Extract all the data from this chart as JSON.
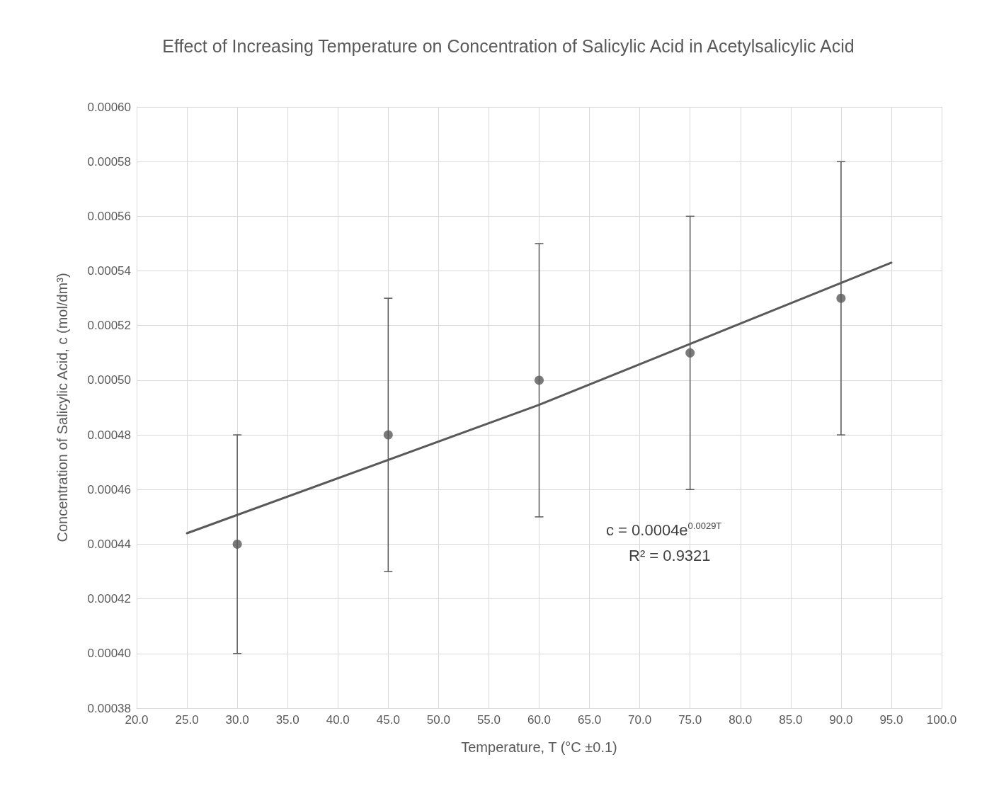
{
  "chart_data": {
    "type": "scatter",
    "title": "Effect of Increasing Temperature on Concentration of Salicylic Acid in Acetylsalicylic Acid",
    "xlabel": "Temperature, T (°C ±0.1)",
    "ylabel": "Concentration of Salicylic Acid, c (mol/dm³)",
    "x": [
      30,
      45,
      60,
      75,
      90
    ],
    "series": [
      {
        "color": "#595959",
        "marker": "circle",
        "values": [
          0.00044,
          0.00048,
          0.0005,
          0.00051,
          0.00053
        ],
        "errors": [
          4e-05,
          5e-05,
          5e-05,
          5e-05,
          5e-05
        ]
      },
      {
        "type": "line",
        "color": "#595959",
        "x": [
          25,
          60,
          95
        ],
        "values": [
          0.000444,
          0.000491,
          0.000543
        ]
      }
    ],
    "annotations": [
      "c = 0.0004e$^{0.0029T}$",
      "R² = 0.9321"
    ],
    "xlim": [
      20,
      100
    ],
    "xticks": [
      {
        "value": 20,
        "label": "20.0"
      },
      {
        "value": 25,
        "label": "25.0"
      },
      {
        "value": 30,
        "label": "30.0"
      },
      {
        "value": 35,
        "label": "35.0"
      },
      {
        "value": 40,
        "label": "40.0"
      },
      {
        "value": 45,
        "label": "45.0"
      },
      {
        "value": 50,
        "label": "50.0"
      },
      {
        "value": 55,
        "label": "55.0"
      },
      {
        "value": 60,
        "label": "60.0"
      },
      {
        "value": 65,
        "label": "65.0"
      },
      {
        "value": 70,
        "label": "70.0"
      },
      {
        "value": 75,
        "label": "75.0"
      },
      {
        "value": 80,
        "label": "80.0"
      },
      {
        "value": 85,
        "label": "85.0"
      },
      {
        "value": 90,
        "label": "90.0"
      },
      {
        "value": 95,
        "label": "95.0"
      },
      {
        "value": 100,
        "label": "100.0"
      }
    ],
    "ylim": [
      0.00038,
      0.0006
    ],
    "yticks": [
      {
        "value": 0.00038,
        "label": "0.00038"
      },
      {
        "value": 0.0004,
        "label": "0.00040"
      },
      {
        "value": 0.00042,
        "label": "0.00042"
      },
      {
        "value": 0.00044,
        "label": "0.00044"
      },
      {
        "value": 0.00046,
        "label": "0.00046"
      },
      {
        "value": 0.00048,
        "label": "0.00048"
      },
      {
        "value": 0.0005,
        "label": "0.00050"
      },
      {
        "value": 0.00052,
        "label": "0.00052"
      },
      {
        "value": 0.00054,
        "label": "0.00054"
      },
      {
        "value": 0.00056,
        "label": "0.00056"
      },
      {
        "value": 0.00058,
        "label": "0.00058"
      },
      {
        "value": 0.0006,
        "label": "0.00060"
      }
    ],
    "grid": true,
    "line_style": "solid"
  }
}
